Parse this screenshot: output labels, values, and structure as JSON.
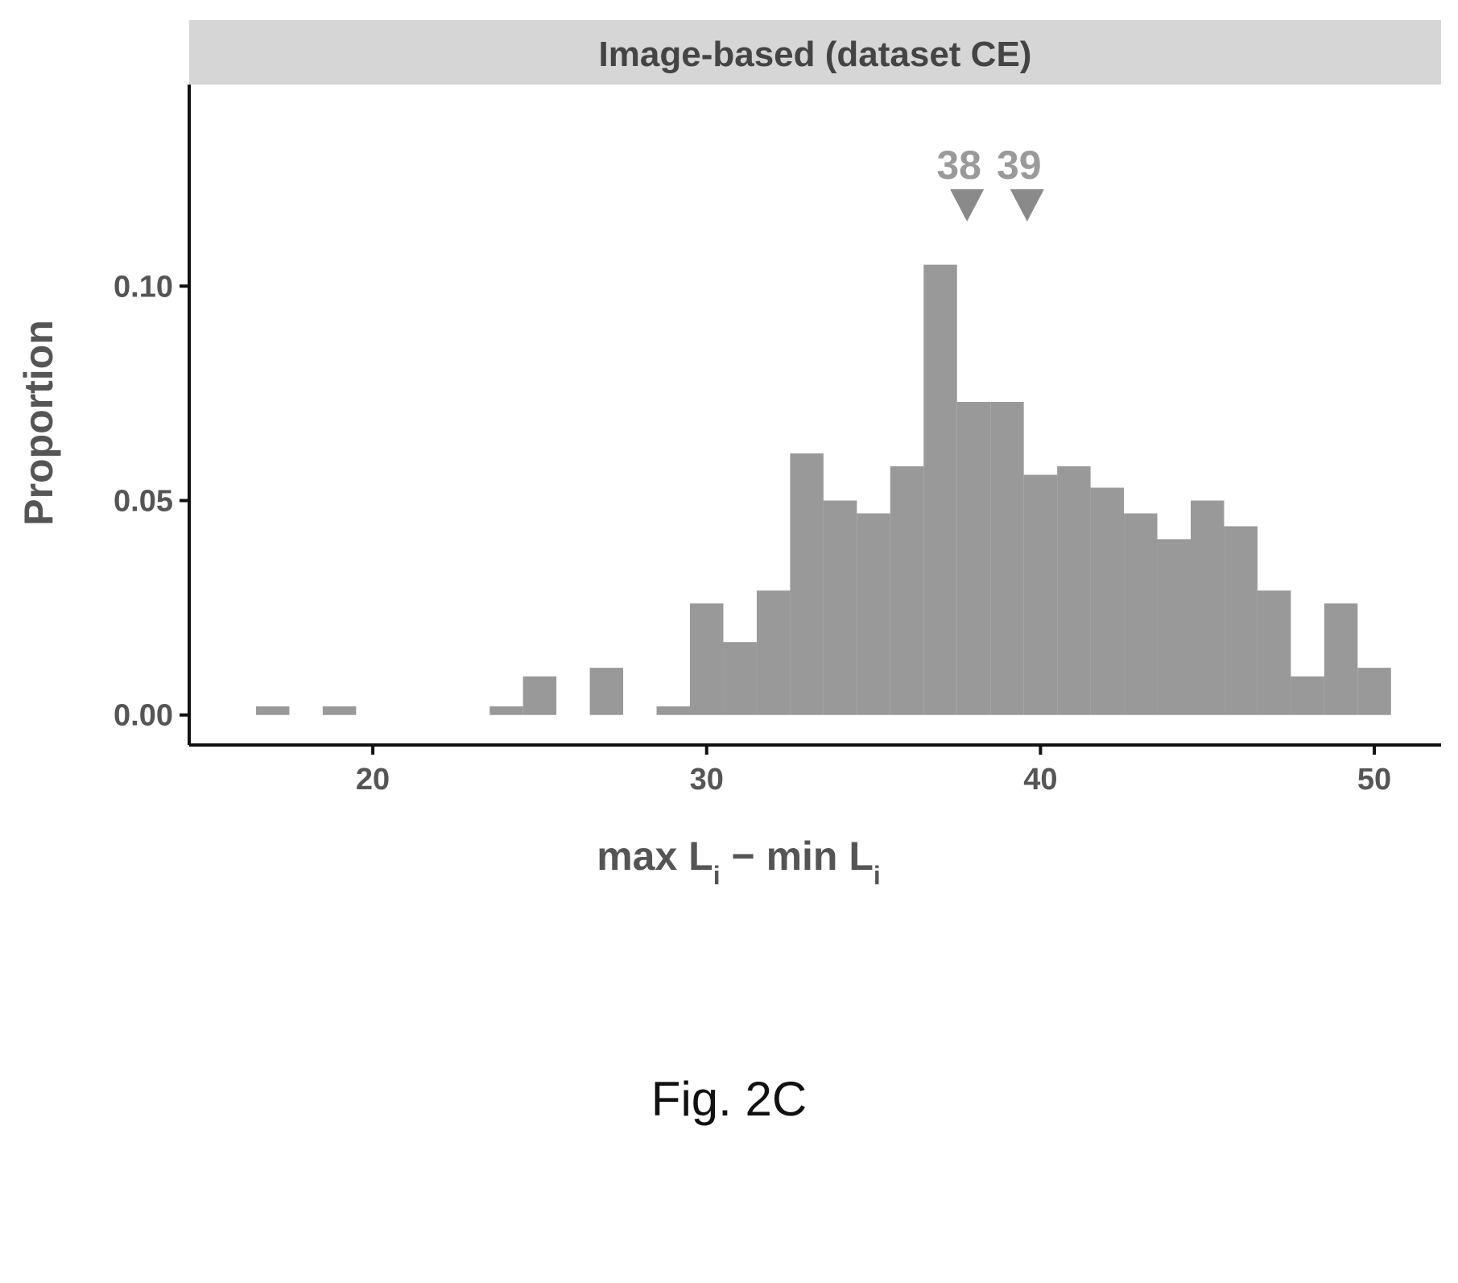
{
  "chart_data": {
    "type": "bar",
    "title": "Image-based (dataset CE)",
    "xlabel": "max L",
    "xlabel_sub": "i",
    "xlabel_mid": " − min L",
    "xlabel_sub2": "i",
    "ylabel": "Proportion",
    "xlim": [
      14.5,
      52
    ],
    "ylim": [
      -0.007,
      0.147
    ],
    "xticks": [
      20,
      30,
      40,
      50
    ],
    "xtick_labels": [
      "20",
      "30",
      "40",
      "50"
    ],
    "yticks": [
      0.0,
      0.05,
      0.1
    ],
    "ytick_labels": [
      "0.00",
      "0.05",
      "0.10"
    ],
    "bin_width": 1,
    "bars": [
      {
        "x": 17,
        "value": 0.002
      },
      {
        "x": 19,
        "value": 0.002
      },
      {
        "x": 24,
        "value": 0.002
      },
      {
        "x": 25,
        "value": 0.009
      },
      {
        "x": 27,
        "value": 0.011
      },
      {
        "x": 29,
        "value": 0.002
      },
      {
        "x": 30,
        "value": 0.026
      },
      {
        "x": 31,
        "value": 0.017
      },
      {
        "x": 32,
        "value": 0.029
      },
      {
        "x": 33,
        "value": 0.061
      },
      {
        "x": 34,
        "value": 0.05
      },
      {
        "x": 35,
        "value": 0.047
      },
      {
        "x": 36,
        "value": 0.058
      },
      {
        "x": 37,
        "value": 0.105
      },
      {
        "x": 38,
        "value": 0.073
      },
      {
        "x": 39,
        "value": 0.073
      },
      {
        "x": 40,
        "value": 0.056
      },
      {
        "x": 41,
        "value": 0.058
      },
      {
        "x": 42,
        "value": 0.053
      },
      {
        "x": 43,
        "value": 0.047
      },
      {
        "x": 44,
        "value": 0.041
      },
      {
        "x": 45,
        "value": 0.05
      },
      {
        "x": 46,
        "value": 0.044
      },
      {
        "x": 47,
        "value": 0.029
      },
      {
        "x": 48,
        "value": 0.009
      },
      {
        "x": 49,
        "value": 0.026
      },
      {
        "x": 50,
        "value": 0.011
      }
    ],
    "markers": [
      {
        "x": 37.8,
        "label": "38"
      },
      {
        "x": 39.6,
        "label": "39"
      }
    ],
    "bar_color": "#999999",
    "grid": false
  },
  "caption": "Fig. 2C"
}
